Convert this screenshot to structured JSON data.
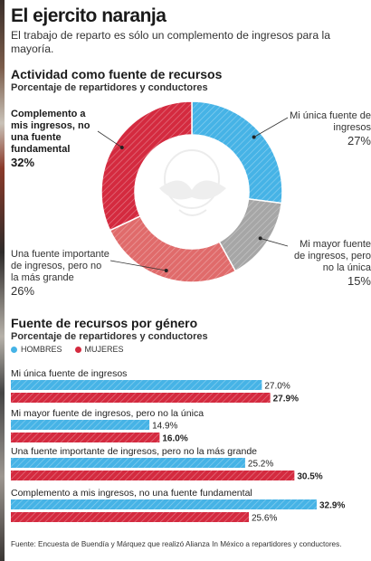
{
  "title": "El ejercito naranja",
  "subtitle": "El trabajo de reparto es sólo un complemento de ingresos para la mayoría.",
  "section1": {
    "title": "Actividad como fuente de recursos",
    "subtitle": "Porcentaje de repartidores y conductores",
    "labels": {
      "complemento": "Complemento a mis ingresos, no una fuente fundamental",
      "complemento_pct": "32%",
      "unica": "Mi única fuente de ingresos",
      "unica_pct": "27%",
      "mayor": "Mi mayor fuente de ingresos, pero no la única",
      "mayor_pct": "15%",
      "importante": "Una fuente importante de ingresos, pero no la más grande",
      "importante_pct": "26%"
    }
  },
  "section2": {
    "title": "Fuente de recursos por género",
    "subtitle": "Porcentaje de repartidores y conductores"
  },
  "legend": {
    "hombres": "HOMBRES",
    "mujeres": "MUJERES"
  },
  "colors": {
    "hombres": "#46b3e6",
    "mujeres": "#d42a3f",
    "gray": "#a6a6a6",
    "salmon": "#e06b6b",
    "orange": "#f07a1a"
  },
  "source": "Fuente: Encuesta de Buendía y Márquez que realizó Alianza In México a repartidores y conductores.",
  "chart_data": [
    {
      "type": "pie",
      "title": "Actividad como fuente de recursos",
      "subtitle": "Porcentaje de repartidores y conductores",
      "categories": [
        "Mi única fuente de ingresos",
        "Mi mayor fuente de ingresos, pero no la única",
        "Una fuente importante de ingresos, pero no la más grande",
        "Complemento a mis ingresos, no una fuente fundamental"
      ],
      "values": [
        27,
        15,
        26,
        32
      ],
      "colors": [
        "#46b3e6",
        "#a6a6a6",
        "#e06b6b",
        "#d42a3f"
      ]
    },
    {
      "type": "bar",
      "title": "Fuente de recursos por género",
      "subtitle": "Porcentaje de repartidores y conductores",
      "categories": [
        "Mi única fuente de ingresos",
        "Mi mayor fuente de ingresos, pero no la única",
        "Una fuente importante de ingresos, pero no la más grande",
        "Complemento a mis ingresos, no una fuente fundamental"
      ],
      "series": [
        {
          "name": "HOMBRES",
          "values": [
            27.0,
            14.9,
            25.2,
            32.9
          ],
          "labels": [
            "27.0%",
            "14.9%",
            "25.2%",
            "32.9%"
          ]
        },
        {
          "name": "MUJERES",
          "values": [
            27.9,
            16.0,
            30.5,
            25.6
          ],
          "labels": [
            "27.9%",
            "16.0%",
            "30.5%",
            "25.6%"
          ]
        }
      ],
      "bold_labels": {
        "HOMBRES": [
          false,
          false,
          false,
          true
        ],
        "MUJERES": [
          true,
          true,
          true,
          false
        ]
      },
      "legend": "top-left"
    }
  ]
}
